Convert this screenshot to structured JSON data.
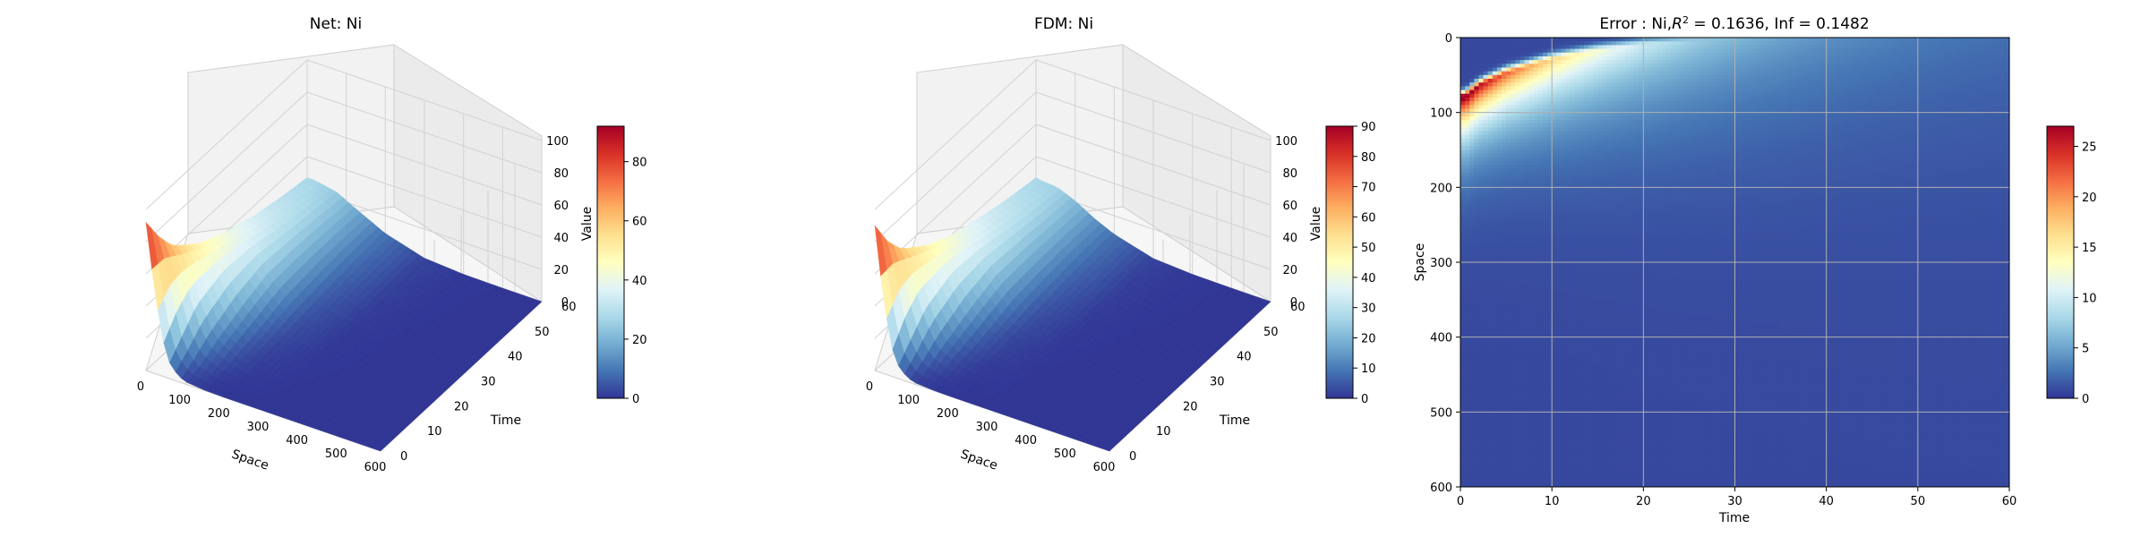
{
  "figure": {
    "panels": [
      {
        "title": "Net: Ni",
        "xlabel": "Space",
        "ylabel": "Time",
        "zlabel": "Value",
        "x_ticks": [
          "0",
          "100",
          "200",
          "300",
          "400",
          "500",
          "600"
        ],
        "y_ticks": [
          "0",
          "10",
          "20",
          "30",
          "40",
          "50",
          "60"
        ],
        "z_ticks": [
          "0",
          "20",
          "40",
          "60",
          "80",
          "100"
        ],
        "cbar_ticks": [
          "0",
          "20",
          "40",
          "60",
          "80"
        ]
      },
      {
        "title": "FDM: Ni",
        "xlabel": "Space",
        "ylabel": "Time",
        "zlabel": "Value",
        "x_ticks": [
          "0",
          "100",
          "200",
          "300",
          "400",
          "500",
          "600"
        ],
        "y_ticks": [
          "0",
          "10",
          "20",
          "30",
          "40",
          "50",
          "60"
        ],
        "z_ticks": [
          "0",
          "20",
          "40",
          "60",
          "80",
          "100"
        ],
        "cbar_ticks": [
          "0",
          "10",
          "20",
          "30",
          "40",
          "50",
          "60",
          "70",
          "80",
          "90"
        ]
      },
      {
        "title_prefix": "Error : Ni,",
        "title_r": "R",
        "title_sup": "2",
        "title_suffix": " = 0.1636, Inf = 0.1482",
        "xlabel": "Time",
        "ylabel": "Space",
        "x_ticks": [
          "0",
          "10",
          "20",
          "30",
          "40",
          "50",
          "60"
        ],
        "y_ticks": [
          "0",
          "100",
          "200",
          "300",
          "400",
          "500",
          "600"
        ],
        "cbar_ticks": [
          "0",
          "5",
          "10",
          "15",
          "20",
          "25"
        ]
      }
    ]
  },
  "chart_data": [
    {
      "type": "surface",
      "title": "Net: Ni",
      "xlabel": "Space",
      "ylabel": "Time",
      "zlabel": "Value",
      "xlim": [
        0,
        600
      ],
      "ylim": [
        0,
        60
      ],
      "zlim": [
        0,
        100
      ],
      "colormap": "RdYlBu_r",
      "cbar_range": [
        0,
        92
      ],
      "space": [
        0,
        20,
        40,
        60,
        80,
        100,
        150,
        200,
        300,
        400,
        500,
        600
      ],
      "time": [
        0,
        5,
        10,
        20,
        30,
        40,
        50,
        60
      ],
      "values": [
        [
          92,
          55,
          25,
          10,
          4,
          1.5,
          0.3,
          0,
          0,
          0,
          0,
          0
        ],
        [
          75,
          60,
          38,
          20,
          10,
          5,
          1,
          0.2,
          0,
          0,
          0,
          0
        ],
        [
          62,
          56,
          44,
          30,
          18,
          10,
          3,
          0.8,
          0,
          0,
          0,
          0
        ],
        [
          48,
          47,
          43,
          36,
          27,
          18,
          7,
          2,
          0.2,
          0,
          0,
          0
        ],
        [
          40,
          40,
          38,
          35,
          30,
          24,
          12,
          4,
          0.5,
          0,
          0,
          0
        ],
        [
          34,
          34,
          33,
          31,
          28,
          24,
          14,
          6,
          1,
          0.1,
          0,
          0
        ],
        [
          30,
          30,
          29,
          28,
          26,
          23,
          15,
          8,
          1.5,
          0.2,
          0,
          0
        ],
        [
          27,
          27,
          26,
          25,
          24,
          21,
          15,
          9,
          2,
          0.3,
          0,
          0
        ]
      ]
    },
    {
      "type": "surface",
      "title": "FDM: Ni",
      "xlabel": "Space",
      "ylabel": "Time",
      "zlabel": "Value",
      "xlim": [
        0,
        600
      ],
      "ylim": [
        0,
        60
      ],
      "zlim": [
        0,
        100
      ],
      "colormap": "RdYlBu_r",
      "cbar_range": [
        0,
        90
      ],
      "space": [
        0,
        20,
        40,
        60,
        80,
        100,
        150,
        200,
        300,
        400,
        500,
        600
      ],
      "time": [
        0,
        5,
        10,
        20,
        30,
        40,
        50,
        60
      ],
      "values": [
        [
          90,
          50,
          20,
          8,
          3,
          1,
          0.2,
          0,
          0,
          0,
          0,
          0
        ],
        [
          72,
          57,
          35,
          18,
          9,
          4,
          0.8,
          0.1,
          0,
          0,
          0,
          0
        ],
        [
          60,
          54,
          42,
          28,
          17,
          9,
          2.5,
          0.6,
          0,
          0,
          0,
          0
        ],
        [
          47,
          46,
          42,
          35,
          26,
          17,
          6,
          1.8,
          0.1,
          0,
          0,
          0
        ],
        [
          39,
          39,
          37,
          34,
          29,
          23,
          11,
          3.5,
          0.4,
          0,
          0,
          0
        ],
        [
          34,
          33,
          32,
          30,
          27,
          23,
          13,
          5.5,
          0.8,
          0.1,
          0,
          0
        ],
        [
          30,
          29,
          29,
          27,
          25,
          22,
          14,
          7.5,
          1.3,
          0.2,
          0,
          0
        ],
        [
          27,
          26,
          26,
          25,
          23,
          21,
          14,
          8.5,
          1.8,
          0.3,
          0,
          0
        ]
      ]
    },
    {
      "type": "heatmap",
      "title": "Error : Ni,R² = 0.1636, Inf = 0.1482",
      "xlabel": "Time",
      "ylabel": "Space",
      "xlim": [
        0,
        60
      ],
      "ylim": [
        600,
        0
      ],
      "grid": true,
      "colormap": "RdYlBu_r",
      "cbar_range": [
        0,
        27
      ],
      "description": "absolute error |Net - FDM| over Space (rows, 0-600, increasing downward) and Time (columns, 0-60)",
      "peak_error": 27,
      "peak_location": {
        "time": 0.5,
        "space": 80
      },
      "max_error_front": [
        {
          "time": 0.5,
          "space": 80
        },
        {
          "time": 2,
          "space": 65
        },
        {
          "time": 5,
          "space": 48
        },
        {
          "time": 10,
          "space": 30
        },
        {
          "time": 15,
          "space": 18
        },
        {
          "time": 20,
          "space": 10
        },
        {
          "time": 25,
          "space": 5
        },
        {
          "time": 30,
          "space": 2
        }
      ]
    }
  ]
}
